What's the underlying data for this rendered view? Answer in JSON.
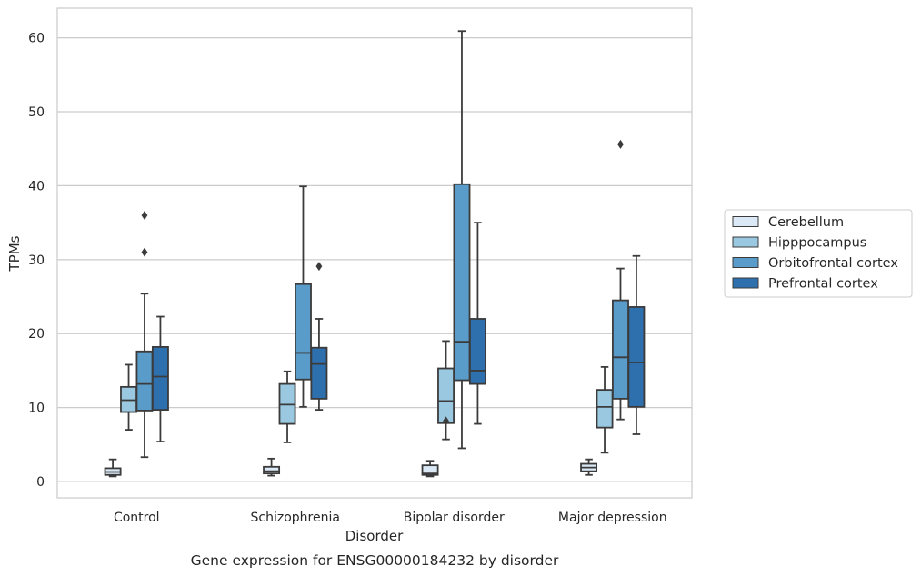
{
  "caption": "Gene expression for ENSG00000184232 by disorder",
  "chart_data": {
    "type": "box",
    "xlabel": "Disorder",
    "ylabel": "TPMs",
    "ylim": [
      -2.2,
      64
    ],
    "yticks": [
      0,
      10,
      20,
      30,
      40,
      50,
      60
    ],
    "grid": "horizontal",
    "legend_position": "right",
    "categories": [
      "Control",
      "Schizophrenia",
      "Bipolar disorder",
      "Major depression"
    ],
    "series": [
      {
        "name": "Cerebellum",
        "color": "#dbe9f6",
        "boxes": [
          {
            "whislo": 0.7,
            "q1": 0.9,
            "med": 1.3,
            "q3": 1.8,
            "whishi": 3.0,
            "fliers": []
          },
          {
            "whislo": 0.8,
            "q1": 1.1,
            "med": 1.4,
            "q3": 2.0,
            "whishi": 3.1,
            "fliers": []
          },
          {
            "whislo": 0.7,
            "q1": 0.9,
            "med": 1.1,
            "q3": 2.2,
            "whishi": 2.8,
            "fliers": []
          },
          {
            "whislo": 0.9,
            "q1": 1.4,
            "med": 1.9,
            "q3": 2.4,
            "whishi": 3.0,
            "fliers": []
          }
        ]
      },
      {
        "name": "Hipppocampus",
        "color": "#9ac8e0",
        "boxes": [
          {
            "whislo": 7.0,
            "q1": 9.4,
            "med": 11.0,
            "q3": 12.8,
            "whishi": 15.8,
            "fliers": []
          },
          {
            "whislo": 5.3,
            "q1": 7.8,
            "med": 10.4,
            "q3": 13.2,
            "whishi": 14.9,
            "fliers": []
          },
          {
            "whislo": 5.7,
            "q1": 7.9,
            "med": 10.9,
            "q3": 15.3,
            "whishi": 19.0,
            "fliers": [
              8.2
            ]
          },
          {
            "whislo": 3.9,
            "q1": 7.3,
            "med": 10.1,
            "q3": 12.4,
            "whishi": 15.5,
            "fliers": []
          }
        ]
      },
      {
        "name": "Orbitofrontal cortex",
        "color": "#5a9cc9",
        "boxes": [
          {
            "whislo": 3.3,
            "q1": 9.6,
            "med": 13.2,
            "q3": 17.6,
            "whishi": 25.4,
            "fliers": [
              31.0,
              36.0
            ]
          },
          {
            "whislo": 10.1,
            "q1": 13.8,
            "med": 17.4,
            "q3": 26.7,
            "whishi": 39.9,
            "fliers": []
          },
          {
            "whislo": 4.5,
            "q1": 13.7,
            "med": 18.9,
            "q3": 40.2,
            "whishi": 60.9,
            "fliers": []
          },
          {
            "whislo": 8.4,
            "q1": 11.2,
            "med": 16.8,
            "q3": 24.5,
            "whishi": 28.8,
            "fliers": [
              45.6
            ]
          }
        ]
      },
      {
        "name": "Prefrontal cortex",
        "color": "#2e6fae",
        "boxes": [
          {
            "whislo": 5.4,
            "q1": 9.7,
            "med": 14.2,
            "q3": 18.2,
            "whishi": 22.3,
            "fliers": []
          },
          {
            "whislo": 9.7,
            "q1": 11.2,
            "med": 15.9,
            "q3": 18.1,
            "whishi": 22.0,
            "fliers": [
              29.1
            ]
          },
          {
            "whislo": 7.8,
            "q1": 13.2,
            "med": 15.0,
            "q3": 22.0,
            "whishi": 35.0,
            "fliers": []
          },
          {
            "whislo": 6.4,
            "q1": 10.1,
            "med": 16.1,
            "q3": 23.6,
            "whishi": 30.5,
            "fliers": []
          }
        ]
      }
    ]
  }
}
